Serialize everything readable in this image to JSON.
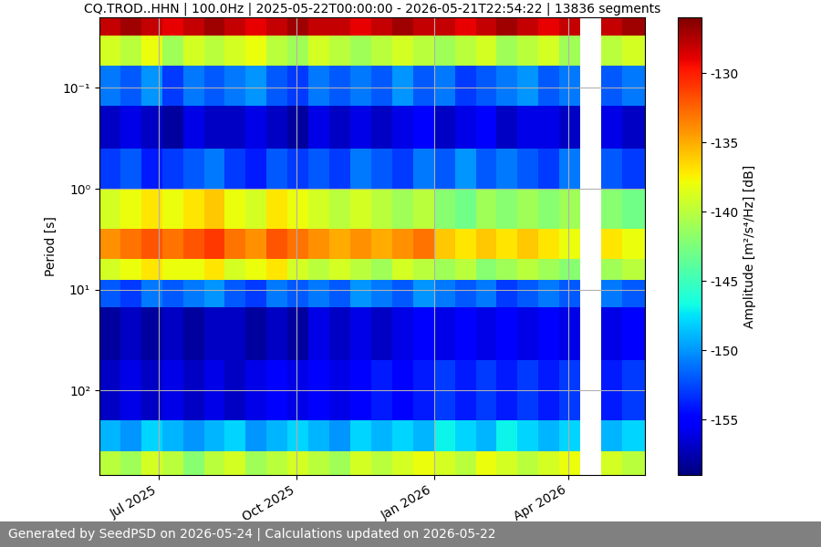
{
  "chart_data": {
    "type": "heatmap",
    "title": "CQ.TROD..HHN | 100.0Hz | 2025-05-22T00:00:00 - 2026-05-21T22:54:22 | 13836 segments",
    "y_label": "Period [s]",
    "colorbar_label": "Amplitude [m²/s⁴/Hz] [dB]",
    "footer": "Generated by SeedPSD on 2026-05-24 | Calculations updated on 2026-05-22",
    "log": "y",
    "grid": true,
    "xlim": [
      "2025-05-22T00:00:00",
      "2026-05-21T22:54:22"
    ],
    "xticks": [
      {
        "value": "2025-07-01T00:00:00",
        "label": "Jul 2025"
      },
      {
        "value": "2025-10-01T00:00:00",
        "label": "Oct 2025"
      },
      {
        "value": "2026-01-01T00:00:00",
        "label": "Jan 2026"
      },
      {
        "value": "2026-04-01T00:00:00",
        "label": "Apr 2026"
      }
    ],
    "ylim": [
      690,
      0.02
    ],
    "yticks": [
      {
        "value": 0.1,
        "label": "10⁻¹"
      },
      {
        "value": 1,
        "label": "10⁰"
      },
      {
        "value": 10,
        "label": "10¹"
      },
      {
        "value": 100,
        "label": "10²"
      }
    ],
    "x_edges": [
      "2025-05-22T00:00:00",
      "2025-06-05T00:00:00",
      "2025-06-19T00:00:00",
      "2025-07-03T00:00:00",
      "2025-07-17T00:00:00",
      "2025-07-31T00:00:00",
      "2025-08-14T00:00:00",
      "2025-08-28T00:00:00",
      "2025-09-11T00:00:00",
      "2025-09-25T00:00:00",
      "2025-10-09T00:00:00",
      "2025-10-23T00:00:00",
      "2025-11-06T00:00:00",
      "2025-11-20T00:00:00",
      "2025-12-04T00:00:00",
      "2025-12-18T00:00:00",
      "2026-01-01T00:00:00",
      "2026-01-15T00:00:00",
      "2026-01-29T00:00:00",
      "2026-02-12T00:00:00",
      "2026-02-26T00:00:00",
      "2026-03-12T00:00:00",
      "2026-03-26T00:00:00",
      "2026-04-09T00:00:00",
      "2026-04-23T00:00:00",
      "2026-05-07T00:00:00",
      "2026-05-21T22:54:22"
    ],
    "y_edges": [
      0.02,
      0.03,
      0.06,
      0.15,
      0.4,
      1.0,
      2.5,
      5,
      8,
      15,
      50,
      200,
      400,
      690
    ],
    "cells": [
      [
        -128,
        -127,
        -128,
        -129,
        -128,
        -127,
        -128,
        -129,
        -128,
        -127,
        -128,
        -128,
        -129,
        -128,
        -127,
        -128,
        -128,
        -129,
        -128,
        -127,
        -128,
        -129,
        -128,
        null,
        -128,
        -127
      ],
      [
        -139,
        -140,
        -138,
        -141,
        -139,
        -140,
        -139,
        -138,
        -140,
        -141,
        -139,
        -140,
        -141,
        -140,
        -139,
        -140,
        -141,
        -140,
        -139,
        -141,
        -140,
        -139,
        -141,
        null,
        -140,
        -139
      ],
      [
        -151,
        -152,
        -150,
        -153,
        -151,
        -152,
        -151,
        -150,
        -152,
        -153,
        -151,
        -152,
        -151,
        -152,
        -150,
        -152,
        -151,
        -153,
        -152,
        -151,
        -150,
        -152,
        -151,
        null,
        -152,
        -151
      ],
      [
        -157,
        -156,
        -157,
        -158,
        -156,
        -157,
        -157,
        -156,
        -157,
        -158,
        -156,
        -157,
        -156,
        -157,
        -156,
        -155,
        -157,
        -156,
        -155,
        -157,
        -156,
        -156,
        -157,
        null,
        -156,
        -157
      ],
      [
        -153,
        -152,
        -154,
        -153,
        -152,
        -151,
        -153,
        -154,
        -152,
        -153,
        -152,
        -153,
        -151,
        -152,
        -153,
        -151,
        -152,
        -150,
        -152,
        -151,
        -152,
        -153,
        -151,
        null,
        -152,
        -153
      ],
      [
        -139,
        -138,
        -137,
        -138,
        -137,
        -136,
        -138,
        -139,
        -137,
        -138,
        -139,
        -140,
        -139,
        -140,
        -141,
        -140,
        -142,
        -143,
        -141,
        -142,
        -141,
        -142,
        -141,
        null,
        -142,
        -143
      ],
      [
        -134,
        -133,
        -132,
        -133,
        -132,
        -131,
        -133,
        -134,
        -132,
        -133,
        -134,
        -135,
        -134,
        -135,
        -134,
        -133,
        -136,
        -137,
        -136,
        -137,
        -136,
        -137,
        -138,
        null,
        -137,
        -138
      ],
      [
        -139,
        -138,
        -137,
        -138,
        -138,
        -137,
        -139,
        -138,
        -137,
        -139,
        -140,
        -139,
        -140,
        -141,
        -139,
        -140,
        -141,
        -140,
        -142,
        -141,
        -140,
        -141,
        -142,
        null,
        -141,
        -140
      ],
      [
        -152,
        -153,
        -151,
        -152,
        -151,
        -150,
        -152,
        -153,
        -151,
        -152,
        -151,
        -152,
        -150,
        -151,
        -152,
        -150,
        -151,
        -152,
        -151,
        -153,
        -152,
        -151,
        -152,
        null,
        -151,
        -152
      ],
      [
        -158,
        -157,
        -158,
        -157,
        -158,
        -157,
        -157,
        -158,
        -157,
        -158,
        -156,
        -157,
        -156,
        -157,
        -156,
        -155,
        -156,
        -155,
        -156,
        -155,
        -156,
        -155,
        -156,
        null,
        -156,
        -155
      ],
      [
        -157,
        -156,
        -157,
        -156,
        -157,
        -156,
        -157,
        -156,
        -155,
        -156,
        -155,
        -156,
        -155,
        -154,
        -155,
        -154,
        -153,
        -154,
        -153,
        -154,
        -153,
        -154,
        -153,
        null,
        -154,
        -153
      ],
      [
        -149,
        -150,
        -148,
        -149,
        -150,
        -149,
        -148,
        -150,
        -149,
        -148,
        -149,
        -150,
        -148,
        -149,
        -148,
        -149,
        -147,
        -148,
        -149,
        -147,
        -148,
        -149,
        -148,
        null,
        -149,
        -148
      ],
      [
        -140,
        -141,
        -139,
        -140,
        -142,
        -140,
        -139,
        -141,
        -140,
        -139,
        -140,
        -141,
        -139,
        -140,
        -139,
        -138,
        -139,
        -140,
        -138,
        -139,
        -140,
        -139,
        -138,
        null,
        -139,
        -140
      ]
    ],
    "clim": [
      -159,
      -126
    ],
    "cticks": [
      -155,
      -150,
      -145,
      -140,
      -135,
      -130
    ]
  }
}
